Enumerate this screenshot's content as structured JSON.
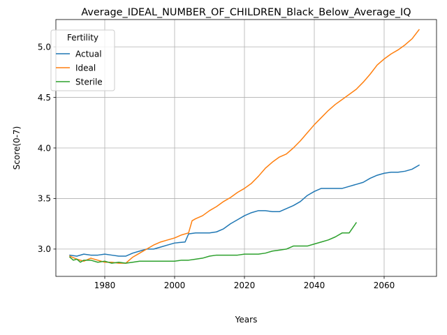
{
  "chart_data": {
    "type": "line",
    "title": "Average_IDEAL_NUMBER_OF_CHILDREN_Black_Below_Average_IQ",
    "xlabel": "Years",
    "ylabel": "Score(0-7)",
    "xlim": [
      1966,
      2075
    ],
    "ylim": [
      2.73,
      5.27
    ],
    "xticks": [
      1980,
      2000,
      2020,
      2040,
      2060
    ],
    "xtick_labels": [
      "1980",
      "2000",
      "2020",
      "2040",
      "2060"
    ],
    "yticks": [
      3.0,
      3.5,
      4.0,
      4.5,
      5.0
    ],
    "ytick_labels": [
      "3.0",
      "3.5",
      "4.0",
      "4.5",
      "5.0"
    ],
    "grid": true,
    "legend": {
      "title": "Fertility",
      "position": "top-left"
    },
    "series": [
      {
        "name": "Actual",
        "color": "#1f77b4",
        "points": [
          [
            1970,
            2.94
          ],
          [
            1972,
            2.93
          ],
          [
            1974,
            2.95
          ],
          [
            1976,
            2.94
          ],
          [
            1978,
            2.94
          ],
          [
            1980,
            2.95
          ],
          [
            1982,
            2.94
          ],
          [
            1984,
            2.93
          ],
          [
            1986,
            2.93
          ],
          [
            1988,
            2.96
          ],
          [
            1990,
            2.98
          ],
          [
            1992,
            3.0
          ],
          [
            1994,
            3.0
          ],
          [
            1996,
            3.02
          ],
          [
            1998,
            3.04
          ],
          [
            2000,
            3.06
          ],
          [
            2003,
            3.07
          ],
          [
            2004,
            3.15
          ],
          [
            2006,
            3.16
          ],
          [
            2008,
            3.16
          ],
          [
            2010,
            3.16
          ],
          [
            2012,
            3.17
          ],
          [
            2014,
            3.2
          ],
          [
            2016,
            3.25
          ],
          [
            2018,
            3.29
          ],
          [
            2020,
            3.33
          ],
          [
            2022,
            3.36
          ],
          [
            2024,
            3.38
          ],
          [
            2026,
            3.38
          ],
          [
            2028,
            3.37
          ],
          [
            2030,
            3.37
          ],
          [
            2032,
            3.4
          ],
          [
            2034,
            3.43
          ],
          [
            2036,
            3.47
          ],
          [
            2038,
            3.53
          ],
          [
            2040,
            3.57
          ],
          [
            2042,
            3.6
          ],
          [
            2044,
            3.6
          ],
          [
            2046,
            3.6
          ],
          [
            2048,
            3.6
          ],
          [
            2050,
            3.62
          ],
          [
            2052,
            3.64
          ],
          [
            2054,
            3.66
          ],
          [
            2056,
            3.7
          ],
          [
            2058,
            3.73
          ],
          [
            2060,
            3.75
          ],
          [
            2062,
            3.76
          ],
          [
            2064,
            3.76
          ],
          [
            2066,
            3.77
          ],
          [
            2068,
            3.79
          ],
          [
            2070,
            3.83
          ]
        ]
      },
      {
        "name": "Ideal",
        "color": "#ff7f0e",
        "points": [
          [
            1970,
            2.93
          ],
          [
            1972,
            2.9
          ],
          [
            1974,
            2.88
          ],
          [
            1976,
            2.91
          ],
          [
            1978,
            2.89
          ],
          [
            1980,
            2.87
          ],
          [
            1982,
            2.87
          ],
          [
            1984,
            2.86
          ],
          [
            1986,
            2.86
          ],
          [
            1988,
            2.92
          ],
          [
            1990,
            2.96
          ],
          [
            1992,
            3.0
          ],
          [
            1994,
            3.04
          ],
          [
            1996,
            3.07
          ],
          [
            1998,
            3.09
          ],
          [
            2000,
            3.11
          ],
          [
            2002,
            3.14
          ],
          [
            2004,
            3.16
          ],
          [
            2005,
            3.28
          ],
          [
            2006,
            3.3
          ],
          [
            2008,
            3.33
          ],
          [
            2010,
            3.38
          ],
          [
            2012,
            3.42
          ],
          [
            2014,
            3.47
          ],
          [
            2016,
            3.51
          ],
          [
            2018,
            3.56
          ],
          [
            2020,
            3.6
          ],
          [
            2022,
            3.65
          ],
          [
            2024,
            3.72
          ],
          [
            2026,
            3.8
          ],
          [
            2028,
            3.86
          ],
          [
            2030,
            3.91
          ],
          [
            2032,
            3.94
          ],
          [
            2034,
            4.0
          ],
          [
            2036,
            4.07
          ],
          [
            2038,
            4.15
          ],
          [
            2040,
            4.23
          ],
          [
            2042,
            4.3
          ],
          [
            2044,
            4.37
          ],
          [
            2046,
            4.43
          ],
          [
            2048,
            4.48
          ],
          [
            2050,
            4.53
          ],
          [
            2052,
            4.58
          ],
          [
            2054,
            4.65
          ],
          [
            2056,
            4.73
          ],
          [
            2058,
            4.82
          ],
          [
            2060,
            4.88
          ],
          [
            2062,
            4.93
          ],
          [
            2064,
            4.97
          ],
          [
            2066,
            5.02
          ],
          [
            2068,
            5.08
          ],
          [
            2070,
            5.17
          ]
        ]
      },
      {
        "name": "Sterile",
        "color": "#2ca02c",
        "points": [
          [
            1970,
            2.92
          ],
          [
            1971,
            2.89
          ],
          [
            1972,
            2.9
          ],
          [
            1973,
            2.87
          ],
          [
            1974,
            2.89
          ],
          [
            1976,
            2.89
          ],
          [
            1978,
            2.87
          ],
          [
            1980,
            2.88
          ],
          [
            1982,
            2.86
          ],
          [
            1984,
            2.87
          ],
          [
            1986,
            2.86
          ],
          [
            1988,
            2.87
          ],
          [
            1990,
            2.88
          ],
          [
            1992,
            2.88
          ],
          [
            1994,
            2.88
          ],
          [
            1996,
            2.88
          ],
          [
            1998,
            2.88
          ],
          [
            2000,
            2.88
          ],
          [
            2002,
            2.89
          ],
          [
            2004,
            2.89
          ],
          [
            2006,
            2.9
          ],
          [
            2008,
            2.91
          ],
          [
            2010,
            2.93
          ],
          [
            2012,
            2.94
          ],
          [
            2014,
            2.94
          ],
          [
            2016,
            2.94
          ],
          [
            2018,
            2.94
          ],
          [
            2020,
            2.95
          ],
          [
            2022,
            2.95
          ],
          [
            2024,
            2.95
          ],
          [
            2026,
            2.96
          ],
          [
            2028,
            2.98
          ],
          [
            2030,
            2.99
          ],
          [
            2032,
            3.0
          ],
          [
            2034,
            3.03
          ],
          [
            2036,
            3.03
          ],
          [
            2038,
            3.03
          ],
          [
            2040,
            3.05
          ],
          [
            2042,
            3.07
          ],
          [
            2044,
            3.09
          ],
          [
            2046,
            3.12
          ],
          [
            2048,
            3.16
          ],
          [
            2050,
            3.16
          ],
          [
            2052,
            3.26
          ]
        ]
      }
    ]
  }
}
